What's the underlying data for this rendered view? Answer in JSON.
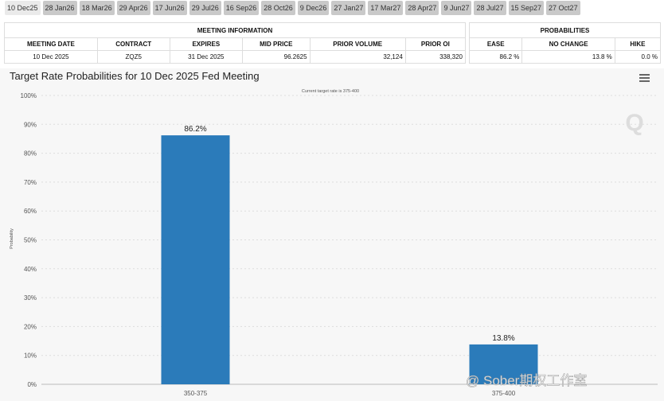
{
  "tabs": [
    "10 Dec25",
    "28 Jan26",
    "18 Mar26",
    "29 Apr26",
    "17 Jun26",
    "29 Jul26",
    "16 Sep26",
    "28 Oct26",
    "9 Dec26",
    "27 Jan27",
    "17 Mar27",
    "28 Apr27",
    "9 Jun27",
    "28 Jul27",
    "15 Sep27",
    "27 Oct27"
  ],
  "meeting_info": {
    "title": "MEETING INFORMATION",
    "headers": [
      "MEETING DATE",
      "CONTRACT",
      "EXPIRES",
      "MID PRICE",
      "PRIOR VOLUME",
      "PRIOR OI"
    ],
    "row": [
      "10 Dec 2025",
      "ZQZ5",
      "31 Dec 2025",
      "96.2625",
      "32,124",
      "338,320"
    ]
  },
  "probabilities": {
    "title": "PROBABILITIES",
    "headers": [
      "EASE",
      "NO CHANGE",
      "HIKE"
    ],
    "row": [
      "86.2 %",
      "13.8 %",
      "0.0 %"
    ]
  },
  "chart_data": {
    "type": "bar",
    "title": "Target Rate Probabilities for 10 Dec 2025 Fed Meeting",
    "subtitle": "Current target rate is 375-400",
    "y_label": "Probability",
    "categories": [
      "350-375",
      "375-400"
    ],
    "values": [
      86.2,
      13.8
    ],
    "value_labels": [
      "86.2%",
      "13.8%"
    ],
    "color": "#2b7bba",
    "ylim": [
      0,
      100
    ],
    "yticks": [
      {
        "value": 0,
        "label": "0%"
      },
      {
        "value": 10,
        "label": "10%"
      },
      {
        "value": 20,
        "label": "20%"
      },
      {
        "value": 30,
        "label": "30%"
      },
      {
        "value": 40,
        "label": "40%"
      },
      {
        "value": 50,
        "label": "50%"
      },
      {
        "value": 60,
        "label": "60%"
      },
      {
        "value": 70,
        "label": "70%"
      },
      {
        "value": 80,
        "label": "80%"
      },
      {
        "value": 90,
        "label": "90%"
      },
      {
        "value": 100,
        "label": "100%"
      }
    ],
    "grid": true
  },
  "watermark": "@ Sober期权工作室"
}
